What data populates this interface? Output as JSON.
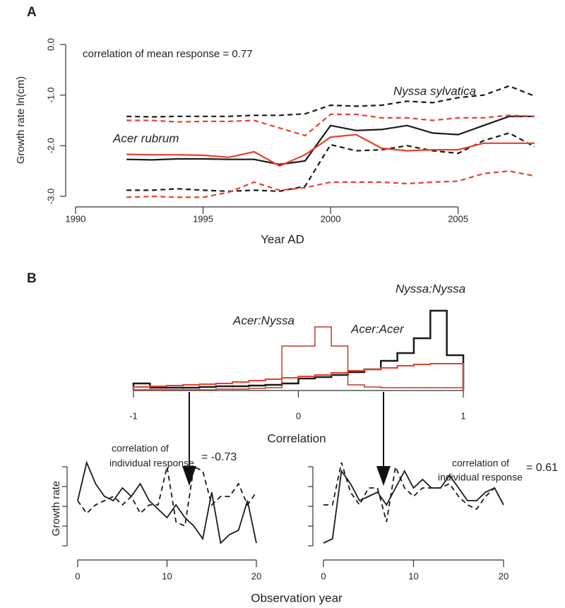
{
  "chart_data": [
    {
      "type": "line",
      "panel_label": "A",
      "annotation": "correlation of mean response = 0.77",
      "ylabel": "Growth rate ln(cm)",
      "xlabel": "Year AD",
      "x": [
        1992,
        1993,
        1994,
        1995,
        1996,
        1997,
        1998,
        1999,
        2000,
        2001,
        2002,
        2003,
        2004,
        2005,
        2006,
        2007,
        2008
      ],
      "xlim": [
        1990,
        2008
      ],
      "xticks": [
        1990,
        1995,
        2000,
        2005
      ],
      "ylim": [
        -3,
        0
      ],
      "yticks": [
        {
          "value": 0,
          "label": "0.0"
        },
        {
          "value": -1,
          "label": "-1.0"
        },
        {
          "value": -2,
          "label": "-2.0"
        },
        {
          "value": -3,
          "label": "-3.0"
        }
      ],
      "series": [
        {
          "name": "Nyssa sylvatica",
          "color": "#1a1a1a",
          "dash": false,
          "values": [
            -2.27,
            -2.28,
            -2.26,
            -2.26,
            -2.27,
            -2.27,
            -2.37,
            -2.3,
            -1.6,
            -1.7,
            -1.68,
            -1.6,
            -1.75,
            -1.78,
            -1.6,
            -1.42,
            -1.42
          ]
        },
        {
          "color": "#1a1a1a",
          "dash": true,
          "values": [
            -1.42,
            -1.43,
            -1.42,
            -1.42,
            -1.42,
            -1.4,
            -1.4,
            -1.37,
            -1.2,
            -1.22,
            -1.2,
            -1.12,
            -1.15,
            -1.05,
            -1.0,
            -0.82,
            -1.02
          ]
        },
        {
          "color": "#1a1a1a",
          "dash": true,
          "values": [
            -2.88,
            -2.88,
            -2.85,
            -2.88,
            -2.9,
            -2.88,
            -2.9,
            -2.8,
            -1.98,
            -2.1,
            -2.08,
            -2.0,
            -2.1,
            -2.15,
            -1.9,
            -1.75,
            -2.02
          ]
        },
        {
          "name": "Acer rubrum",
          "color": "#e8402a",
          "dash": false,
          "values": [
            -2.17,
            -2.18,
            -2.18,
            -2.19,
            -2.23,
            -2.12,
            -2.4,
            -2.18,
            -1.83,
            -1.78,
            -2.05,
            -2.1,
            -2.08,
            -2.08,
            -1.95,
            -1.95,
            -1.95
          ]
        },
        {
          "color": "#e8402a",
          "dash": true,
          "values": [
            -1.5,
            -1.5,
            -1.53,
            -1.52,
            -1.52,
            -1.5,
            -1.65,
            -1.8,
            -1.38,
            -1.38,
            -1.45,
            -1.45,
            -1.5,
            -1.45,
            -1.45,
            -1.4,
            -1.42
          ]
        },
        {
          "color": "#e8402a",
          "dash": true,
          "values": [
            -3.02,
            -3.0,
            -3.02,
            -3.02,
            -2.92,
            -2.72,
            -2.88,
            -2.83,
            -2.72,
            -2.72,
            -2.72,
            -2.75,
            -2.72,
            -2.7,
            -2.55,
            -2.5,
            -2.6
          ]
        }
      ]
    },
    {
      "type": "histogram",
      "panel_label": "B",
      "xlabel": "Correlation",
      "bins": [
        -1,
        -0.9,
        -0.8,
        -0.7,
        -0.6,
        -0.5,
        -0.4,
        -0.3,
        -0.2,
        -0.1,
        0,
        0.1,
        0.2,
        0.3,
        0.4,
        0.5,
        0.6,
        0.7,
        0.8,
        0.9,
        1
      ],
      "xlim": [
        -1,
        1
      ],
      "xticks": [
        -1,
        0,
        1
      ],
      "ylim": [
        0,
        120
      ],
      "series": [
        {
          "name": "Nyssa:Nyssa",
          "color": "#1a1a1a",
          "values": [
            10,
            4,
            4,
            4,
            5,
            6,
            6,
            7,
            8,
            10,
            17,
            19,
            22,
            26,
            30,
            42,
            53,
            74,
            113,
            50
          ]
        },
        {
          "name": "Acer:Nyssa",
          "color": "#c0392b",
          "values": [
            1,
            1,
            1,
            1,
            1,
            2,
            2,
            3,
            4,
            63,
            63,
            90,
            63,
            8,
            5,
            4,
            4,
            4,
            4,
            4
          ]
        },
        {
          "name": "Acer:Acer",
          "color": "#e8402a",
          "values": [
            5,
            6,
            7,
            8,
            9,
            10,
            12,
            14,
            16,
            18,
            20,
            22,
            25,
            28,
            30,
            32,
            35,
            37,
            38,
            38
          ]
        }
      ]
    },
    {
      "type": "line",
      "ylabel": "Growth rate",
      "xlabel": "Observation year",
      "annotation_lines": [
        "correlation of",
        "individual response"
      ],
      "annotation_value": "= -0.73",
      "x": [
        0,
        1,
        2,
        3,
        4,
        5,
        6,
        7,
        8,
        9,
        10,
        11,
        12,
        13,
        14,
        15,
        16,
        17,
        18,
        19,
        20
      ],
      "xlim": [
        0,
        20
      ],
      "xticks": [
        0,
        10,
        20
      ],
      "ylim": [
        0,
        10
      ],
      "series": [
        {
          "color": "#1a1a1a",
          "dash": false,
          "values": [
            5.5,
            10,
            7.5,
            6,
            5.5,
            7,
            6,
            7.5,
            5.5,
            4.5,
            3.5,
            5,
            3.5,
            2.5,
            1,
            6.5,
            0.5,
            1.5,
            2,
            5.5,
            0.5
          ]
        },
        {
          "color": "#1a1a1a",
          "dash": true,
          "values": [
            5.5,
            4,
            5,
            5.5,
            6,
            5,
            6,
            4,
            5,
            5,
            9.5,
            3,
            2.5,
            9.5,
            9,
            5,
            6,
            6,
            7.5,
            5,
            6.5
          ]
        }
      ]
    },
    {
      "type": "line",
      "annotation_lines": [
        "correlation of",
        "individual response"
      ],
      "annotation_value": "= 0.61",
      "x": [
        0,
        1,
        2,
        3,
        4,
        5,
        6,
        7,
        8,
        9,
        10,
        11,
        12,
        13,
        14,
        15,
        16,
        17,
        18,
        19,
        20
      ],
      "xlim": [
        0,
        20
      ],
      "xticks": [
        0,
        10,
        20
      ],
      "ylim": [
        0,
        10
      ],
      "series": [
        {
          "color": "#1a1a1a",
          "dash": false,
          "values": [
            0.5,
            1,
            9,
            7.5,
            5.5,
            6,
            6.5,
            5,
            7,
            9,
            7,
            8,
            7,
            7,
            8.5,
            7,
            5.5,
            5.5,
            6.5,
            7,
            5
          ]
        },
        {
          "color": "#1a1a1a",
          "dash": true,
          "values": [
            5,
            5,
            10,
            6.5,
            5,
            7,
            7,
            3,
            9.5,
            7,
            6,
            7,
            7,
            7,
            7.5,
            6,
            5,
            4.5,
            6,
            7,
            5
          ]
        }
      ]
    }
  ]
}
